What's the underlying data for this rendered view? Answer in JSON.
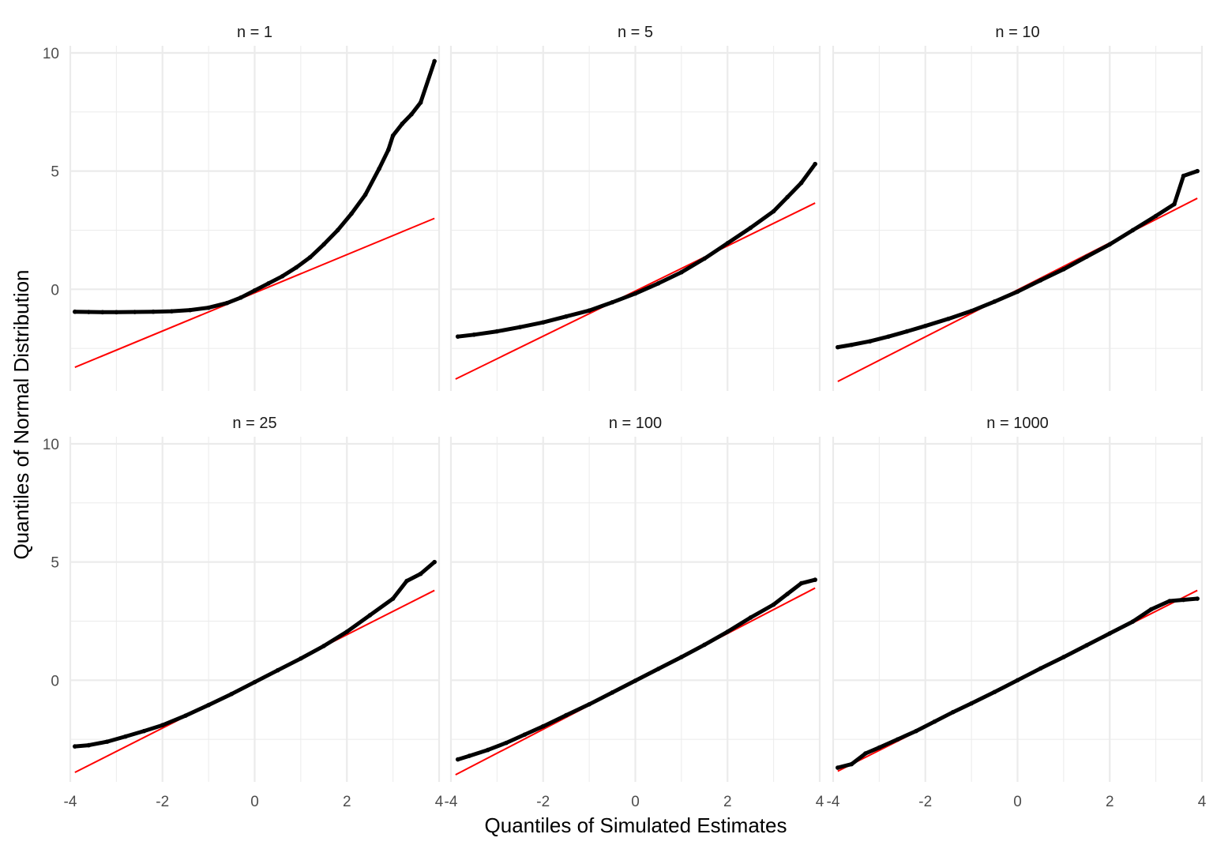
{
  "chart_data": {
    "type": "scatter",
    "layout": "facet-grid 2x3",
    "xlabel": "Quantiles of Simulated Estimates",
    "ylabel": "Quantiles of Normal Distribution",
    "xlim": [
      -4,
      4
    ],
    "ylim": [
      -4.3,
      10.3
    ],
    "x_ticks": [
      -4,
      -2,
      0,
      2,
      4
    ],
    "y_ticks": [
      0,
      5,
      10
    ],
    "grid": true,
    "legend": "none",
    "colors": {
      "points": "#000000",
      "line": "#ff0000",
      "grid": "#ebebeb"
    },
    "series_kind": [
      "qq-points",
      "reference-line"
    ],
    "panels": [
      {
        "label": "n = 1",
        "reference_line": {
          "x": [
            -3.9,
            3.9
          ],
          "y": [
            -3.3,
            3.0
          ]
        },
        "points": [
          [
            -3.9,
            -0.95
          ],
          [
            -3.6,
            -0.96
          ],
          [
            -3.3,
            -0.97
          ],
          [
            -3.0,
            -0.97
          ],
          [
            -2.6,
            -0.96
          ],
          [
            -2.2,
            -0.95
          ],
          [
            -1.8,
            -0.93
          ],
          [
            -1.4,
            -0.88
          ],
          [
            -1.0,
            -0.78
          ],
          [
            -0.6,
            -0.58
          ],
          [
            -0.3,
            -0.35
          ],
          [
            0.0,
            -0.05
          ],
          [
            0.3,
            0.25
          ],
          [
            0.6,
            0.55
          ],
          [
            0.9,
            0.92
          ],
          [
            1.2,
            1.35
          ],
          [
            1.5,
            1.9
          ],
          [
            1.8,
            2.5
          ],
          [
            2.1,
            3.2
          ],
          [
            2.4,
            4.0
          ],
          [
            2.7,
            5.1
          ],
          [
            2.9,
            5.9
          ],
          [
            3.0,
            6.5
          ],
          [
            3.2,
            7.0
          ],
          [
            3.4,
            7.4
          ],
          [
            3.6,
            7.9
          ],
          [
            3.9,
            9.65
          ]
        ]
      },
      {
        "label": "n = 5",
        "reference_line": {
          "x": [
            -3.9,
            3.9
          ],
          "y": [
            -3.8,
            3.65
          ]
        },
        "points": [
          [
            -3.85,
            -2.0
          ],
          [
            -3.5,
            -1.92
          ],
          [
            -3.0,
            -1.78
          ],
          [
            -2.5,
            -1.6
          ],
          [
            -2.0,
            -1.4
          ],
          [
            -1.5,
            -1.15
          ],
          [
            -1.0,
            -0.9
          ],
          [
            -0.5,
            -0.55
          ],
          [
            0.0,
            -0.18
          ],
          [
            0.5,
            0.25
          ],
          [
            1.0,
            0.72
          ],
          [
            1.5,
            1.3
          ],
          [
            2.0,
            1.95
          ],
          [
            2.5,
            2.6
          ],
          [
            3.0,
            3.3
          ],
          [
            3.3,
            3.9
          ],
          [
            3.6,
            4.5
          ],
          [
            3.9,
            5.3
          ]
        ]
      },
      {
        "label": "n = 10",
        "reference_line": {
          "x": [
            -3.9,
            3.9
          ],
          "y": [
            -3.9,
            3.85
          ]
        },
        "points": [
          [
            -3.9,
            -2.45
          ],
          [
            -3.6,
            -2.35
          ],
          [
            -3.2,
            -2.2
          ],
          [
            -2.8,
            -2.0
          ],
          [
            -2.4,
            -1.78
          ],
          [
            -2.0,
            -1.55
          ],
          [
            -1.5,
            -1.25
          ],
          [
            -1.0,
            -0.92
          ],
          [
            -0.5,
            -0.52
          ],
          [
            0.0,
            -0.1
          ],
          [
            0.5,
            0.38
          ],
          [
            1.0,
            0.85
          ],
          [
            1.5,
            1.38
          ],
          [
            2.0,
            1.9
          ],
          [
            2.5,
            2.5
          ],
          [
            3.0,
            3.1
          ],
          [
            3.4,
            3.6
          ],
          [
            3.6,
            4.8
          ],
          [
            3.9,
            5.0
          ]
        ]
      },
      {
        "label": "n = 25",
        "reference_line": {
          "x": [
            -3.9,
            3.9
          ],
          "y": [
            -3.9,
            3.8
          ]
        },
        "points": [
          [
            -3.9,
            -2.8
          ],
          [
            -3.6,
            -2.75
          ],
          [
            -3.2,
            -2.6
          ],
          [
            -2.8,
            -2.38
          ],
          [
            -2.4,
            -2.15
          ],
          [
            -2.0,
            -1.9
          ],
          [
            -1.5,
            -1.5
          ],
          [
            -1.0,
            -1.05
          ],
          [
            -0.5,
            -0.58
          ],
          [
            0.0,
            -0.08
          ],
          [
            0.5,
            0.42
          ],
          [
            1.0,
            0.92
          ],
          [
            1.5,
            1.45
          ],
          [
            2.0,
            2.05
          ],
          [
            2.5,
            2.75
          ],
          [
            3.0,
            3.45
          ],
          [
            3.3,
            4.2
          ],
          [
            3.6,
            4.5
          ],
          [
            3.9,
            5.0
          ]
        ]
      },
      {
        "label": "n = 100",
        "reference_line": {
          "x": [
            -3.9,
            3.9
          ],
          "y": [
            -4.0,
            3.9
          ]
        },
        "points": [
          [
            -3.85,
            -3.35
          ],
          [
            -3.6,
            -3.2
          ],
          [
            -3.2,
            -2.95
          ],
          [
            -2.8,
            -2.65
          ],
          [
            -2.4,
            -2.3
          ],
          [
            -2.0,
            -1.95
          ],
          [
            -1.5,
            -1.48
          ],
          [
            -1.0,
            -1.02
          ],
          [
            -0.5,
            -0.52
          ],
          [
            0.0,
            -0.02
          ],
          [
            0.5,
            0.48
          ],
          [
            1.0,
            0.98
          ],
          [
            1.5,
            1.5
          ],
          [
            2.0,
            2.05
          ],
          [
            2.5,
            2.65
          ],
          [
            3.0,
            3.2
          ],
          [
            3.3,
            3.65
          ],
          [
            3.6,
            4.1
          ],
          [
            3.9,
            4.25
          ]
        ]
      },
      {
        "label": "n = 1000",
        "reference_line": {
          "x": [
            -3.9,
            3.9
          ],
          "y": [
            -3.85,
            3.8
          ]
        },
        "points": [
          [
            -3.9,
            -3.7
          ],
          [
            -3.6,
            -3.55
          ],
          [
            -3.3,
            -3.1
          ],
          [
            -3.0,
            -2.85
          ],
          [
            -2.6,
            -2.5
          ],
          [
            -2.2,
            -2.15
          ],
          [
            -1.8,
            -1.75
          ],
          [
            -1.4,
            -1.35
          ],
          [
            -1.0,
            -0.98
          ],
          [
            -0.5,
            -0.5
          ],
          [
            0.0,
            0.0
          ],
          [
            0.5,
            0.5
          ],
          [
            1.0,
            0.98
          ],
          [
            1.5,
            1.48
          ],
          [
            2.0,
            1.98
          ],
          [
            2.5,
            2.48
          ],
          [
            2.9,
            3.0
          ],
          [
            3.3,
            3.35
          ],
          [
            3.6,
            3.4
          ],
          [
            3.9,
            3.45
          ]
        ]
      }
    ]
  }
}
